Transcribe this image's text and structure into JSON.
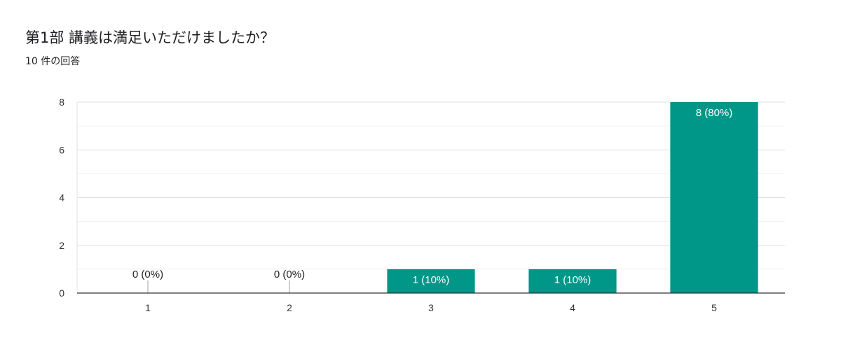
{
  "header": {
    "title": "第1部 講義は満足いただけましたか？",
    "response_count": "10 件の回答"
  },
  "chart_data": {
    "type": "bar",
    "categories": [
      "1",
      "2",
      "3",
      "4",
      "5"
    ],
    "values": [
      0,
      0,
      1,
      1,
      8
    ],
    "data_labels": [
      "0 (0%)",
      "0 (0%)",
      "1 (10%)",
      "1 (10%)",
      "8 (80%)"
    ],
    "ylim": [
      0,
      8
    ],
    "yticks": [
      0,
      2,
      4,
      6,
      8
    ],
    "grid": true,
    "legend": "none",
    "bar_color": "#009688"
  }
}
